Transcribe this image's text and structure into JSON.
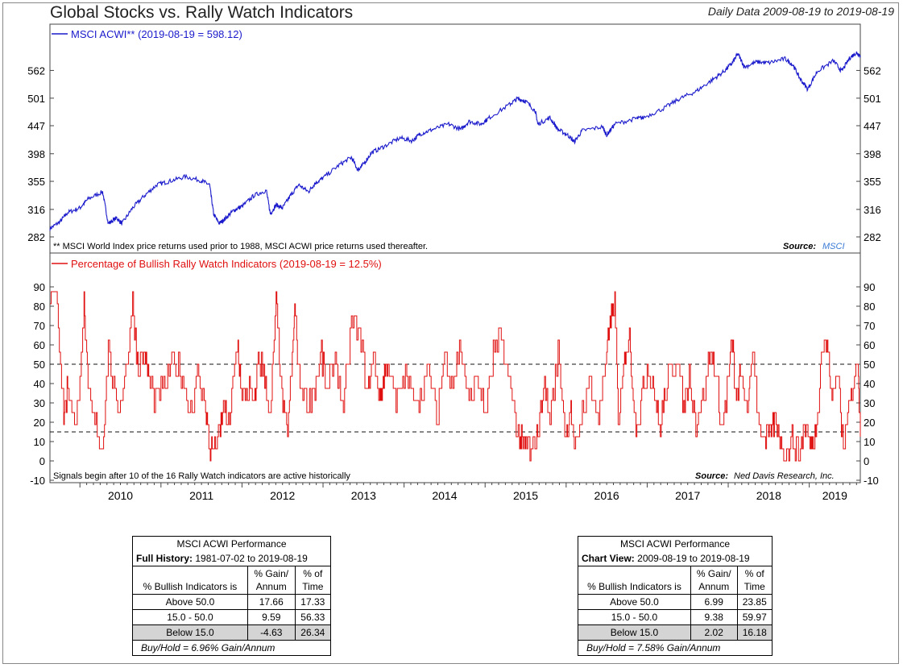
{
  "header": {
    "title": "Global Stocks vs. Rally Watch Indicators",
    "date_range": "Daily Data 2009-08-19 to 2019-08-19"
  },
  "top_panel": {
    "legend": "MSCI ACWI** (2019-08-19 = 598.12)",
    "footnote": "** MSCI World Index price returns used prior to 1988, MSCI ACWI price returns used thereafter.",
    "source_label": "Source:",
    "source_name": "MSCI"
  },
  "bottom_panel": {
    "legend": "Percentage of Bullish Rally Watch Indicators (2019-08-19 = 12.5%)",
    "footnote": "Signals begin after 10 of the 16 Rally Watch indicators are active historically",
    "source_label": "Source:",
    "source_name": "Ned Davis Research, Inc."
  },
  "colors": {
    "msci_line": "#1a1acc",
    "indicator_line": "#e01010",
    "shade": "#d4d4d4"
  },
  "chart_data": [
    {
      "type": "line",
      "scale": "log",
      "series": [
        {
          "name": "MSCI ACWI** (2019-08-19 = 598.12)",
          "x": [
            2009.63,
            2009.75,
            2009.85,
            2010.0,
            2010.1,
            2010.28,
            2010.35,
            2010.45,
            2010.52,
            2010.65,
            2010.8,
            2010.95,
            2011.1,
            2011.3,
            2011.5,
            2011.6,
            2011.65,
            2011.72,
            2011.8,
            2011.9,
            2012.0,
            2012.15,
            2012.3,
            2012.35,
            2012.42,
            2012.5,
            2012.6,
            2012.7,
            2012.82,
            2012.9,
            2013.0,
            2013.2,
            2013.35,
            2013.43,
            2013.48,
            2013.6,
            2013.75,
            2013.95,
            2014.1,
            2014.2,
            2014.35,
            2014.55,
            2014.7,
            2014.8,
            2014.95,
            2015.05,
            2015.3,
            2015.4,
            2015.5,
            2015.62,
            2015.65,
            2015.8,
            2015.9,
            2016.02,
            2016.1,
            2016.2,
            2016.45,
            2016.5,
            2016.6,
            2016.85,
            2016.95,
            2017.2,
            2017.4,
            2017.6,
            2017.8,
            2017.95,
            2018.05,
            2018.12,
            2018.2,
            2018.35,
            2018.5,
            2018.7,
            2018.8,
            2018.88,
            2018.98,
            2019.1,
            2019.3,
            2019.4,
            2019.5,
            2019.58,
            2019.63
          ],
          "values": [
            292,
            300,
            312,
            318,
            330,
            340,
            298,
            305,
            298,
            318,
            335,
            350,
            355,
            362,
            356,
            350,
            310,
            298,
            305,
            315,
            320,
            335,
            342,
            310,
            322,
            318,
            335,
            350,
            340,
            352,
            360,
            380,
            392,
            372,
            378,
            400,
            410,
            425,
            420,
            432,
            440,
            450,
            440,
            455,
            450,
            462,
            488,
            500,
            495,
            475,
            450,
            462,
            440,
            430,
            418,
            438,
            445,
            430,
            450,
            460,
            462,
            480,
            500,
            515,
            540,
            560,
            580,
            602,
            570,
            582,
            580,
            590,
            575,
            545,
            520,
            560,
            585,
            560,
            592,
            605,
            598
          ]
        }
      ],
      "yticks": [
        282,
        316,
        355,
        398,
        447,
        501,
        562
      ],
      "ylim": [
        282,
        620
      ]
    },
    {
      "type": "line",
      "series": [
        {
          "name": "Percentage of Bullish Rally Watch Indicators (2019-08-19 = 12.5%)",
          "x": [
            2009.63,
            2009.72,
            2009.8,
            2009.85,
            2009.95,
            2010.05,
            2010.1,
            2010.2,
            2010.28,
            2010.35,
            2010.45,
            2010.55,
            2010.65,
            2010.72,
            2010.8,
            2010.85,
            2010.95,
            2011.05,
            2011.15,
            2011.25,
            2011.35,
            2011.45,
            2011.55,
            2011.6,
            2011.65,
            2011.72,
            2011.78,
            2011.82,
            2011.9,
            2011.95,
            2012.0,
            2012.08,
            2012.15,
            2012.2,
            2012.28,
            2012.35,
            2012.42,
            2012.48,
            2012.55,
            2012.62,
            2012.65,
            2012.7,
            2012.8,
            2012.9,
            2012.98,
            2013.05,
            2013.15,
            2013.25,
            2013.35,
            2013.45,
            2013.55,
            2013.62,
            2013.7,
            2013.75,
            2013.8,
            2013.9,
            2014.0,
            2014.1,
            2014.2,
            2014.3,
            2014.4,
            2014.5,
            2014.6,
            2014.7,
            2014.8,
            2014.9,
            2015.0,
            2015.1,
            2015.2,
            2015.3,
            2015.4,
            2015.45,
            2015.5,
            2015.58,
            2015.65,
            2015.72,
            2015.8,
            2015.9,
            2016.0,
            2016.05,
            2016.1,
            2016.2,
            2016.3,
            2016.4,
            2016.5,
            2016.55,
            2016.6,
            2016.65,
            2016.72,
            2016.78,
            2016.85,
            2016.92,
            2017.0,
            2017.08,
            2017.15,
            2017.22,
            2017.3,
            2017.38,
            2017.45,
            2017.52,
            2017.6,
            2017.7,
            2017.78,
            2017.85,
            2017.92,
            2018.0,
            2018.05,
            2018.1,
            2018.15,
            2018.25,
            2018.3,
            2018.38,
            2018.45,
            2018.52,
            2018.58,
            2018.65,
            2018.72,
            2018.8,
            2018.88,
            2018.95,
            2019.02,
            2019.08,
            2019.15,
            2019.22,
            2019.28,
            2019.35,
            2019.42,
            2019.5,
            2019.55,
            2019.6,
            2019.63
          ],
          "values": [
            87,
            84,
            20,
            40,
            15,
            81,
            35,
            17,
            7,
            60,
            25,
            43,
            82,
            46,
            55,
            42,
            30,
            40,
            52,
            45,
            25,
            43,
            28,
            7,
            7,
            12,
            30,
            15,
            45,
            60,
            30,
            38,
            25,
            55,
            45,
            20,
            85,
            40,
            14,
            50,
            80,
            45,
            30,
            38,
            55,
            33,
            55,
            25,
            72,
            65,
            35,
            55,
            30,
            45,
            50,
            28,
            45,
            35,
            32,
            48,
            22,
            55,
            42,
            60,
            28,
            45,
            22,
            55,
            62,
            40,
            15,
            10,
            8,
            5,
            15,
            40,
            22,
            55,
            10,
            30,
            5,
            25,
            42,
            20,
            62,
            70,
            83,
            15,
            55,
            65,
            20,
            28,
            50,
            40,
            15,
            35,
            47,
            55,
            25,
            45,
            20,
            35,
            55,
            45,
            18,
            40,
            62,
            28,
            45,
            25,
            60,
            20,
            8,
            15,
            20,
            10,
            5,
            12,
            3,
            20,
            8,
            15,
            55,
            62,
            30,
            50,
            5,
            35,
            42,
            50,
            12.5
          ]
        }
      ],
      "yticks": [
        -10,
        0,
        10,
        20,
        30,
        40,
        50,
        60,
        70,
        80,
        90
      ],
      "ylim": [
        -10,
        90
      ],
      "reference_lines": [
        50,
        15
      ]
    }
  ],
  "x_axis": {
    "labels": [
      "2010",
      "2011",
      "2012",
      "2013",
      "2014",
      "2015",
      "2016",
      "2017",
      "2018",
      "2019"
    ],
    "range": [
      2009.63,
      2019.63
    ]
  },
  "tables": {
    "full_history": {
      "title": "MSCI ACWI Performance",
      "subtitle_bold": "Full History:",
      "subtitle_range": "1981-07-02 to 2019-08-19",
      "col_label": "% Bullish Indicators is",
      "col_gain": "% Gain/",
      "col_gain2": "Annum",
      "col_time": "% of",
      "col_time2": "Time",
      "rows": [
        {
          "label": "Above 50.0",
          "gain": "17.66",
          "time": "17.33"
        },
        {
          "label": "15.0 - 50.0",
          "gain": "9.59",
          "time": "56.33"
        },
        {
          "label": "Below 15.0",
          "gain": "-4.63",
          "time": "26.34"
        }
      ],
      "footer": "Buy/Hold = 6.96% Gain/Annum"
    },
    "chart_view": {
      "title": "MSCI ACWI Performance",
      "subtitle_bold": "Chart View:",
      "subtitle_range": "2009-08-19 to 2019-08-19",
      "col_label": "% Bullish Indicators is",
      "col_gain": "% Gain/",
      "col_gain2": "Annum",
      "col_time": "% of",
      "col_time2": "Time",
      "rows": [
        {
          "label": "Above 50.0",
          "gain": "6.99",
          "time": "23.85"
        },
        {
          "label": "15.0 - 50.0",
          "gain": "9.38",
          "time": "59.97"
        },
        {
          "label": "Below 15.0",
          "gain": "2.02",
          "time": "16.18"
        }
      ],
      "footer": "Buy/Hold = 7.58% Gain/Annum"
    }
  }
}
